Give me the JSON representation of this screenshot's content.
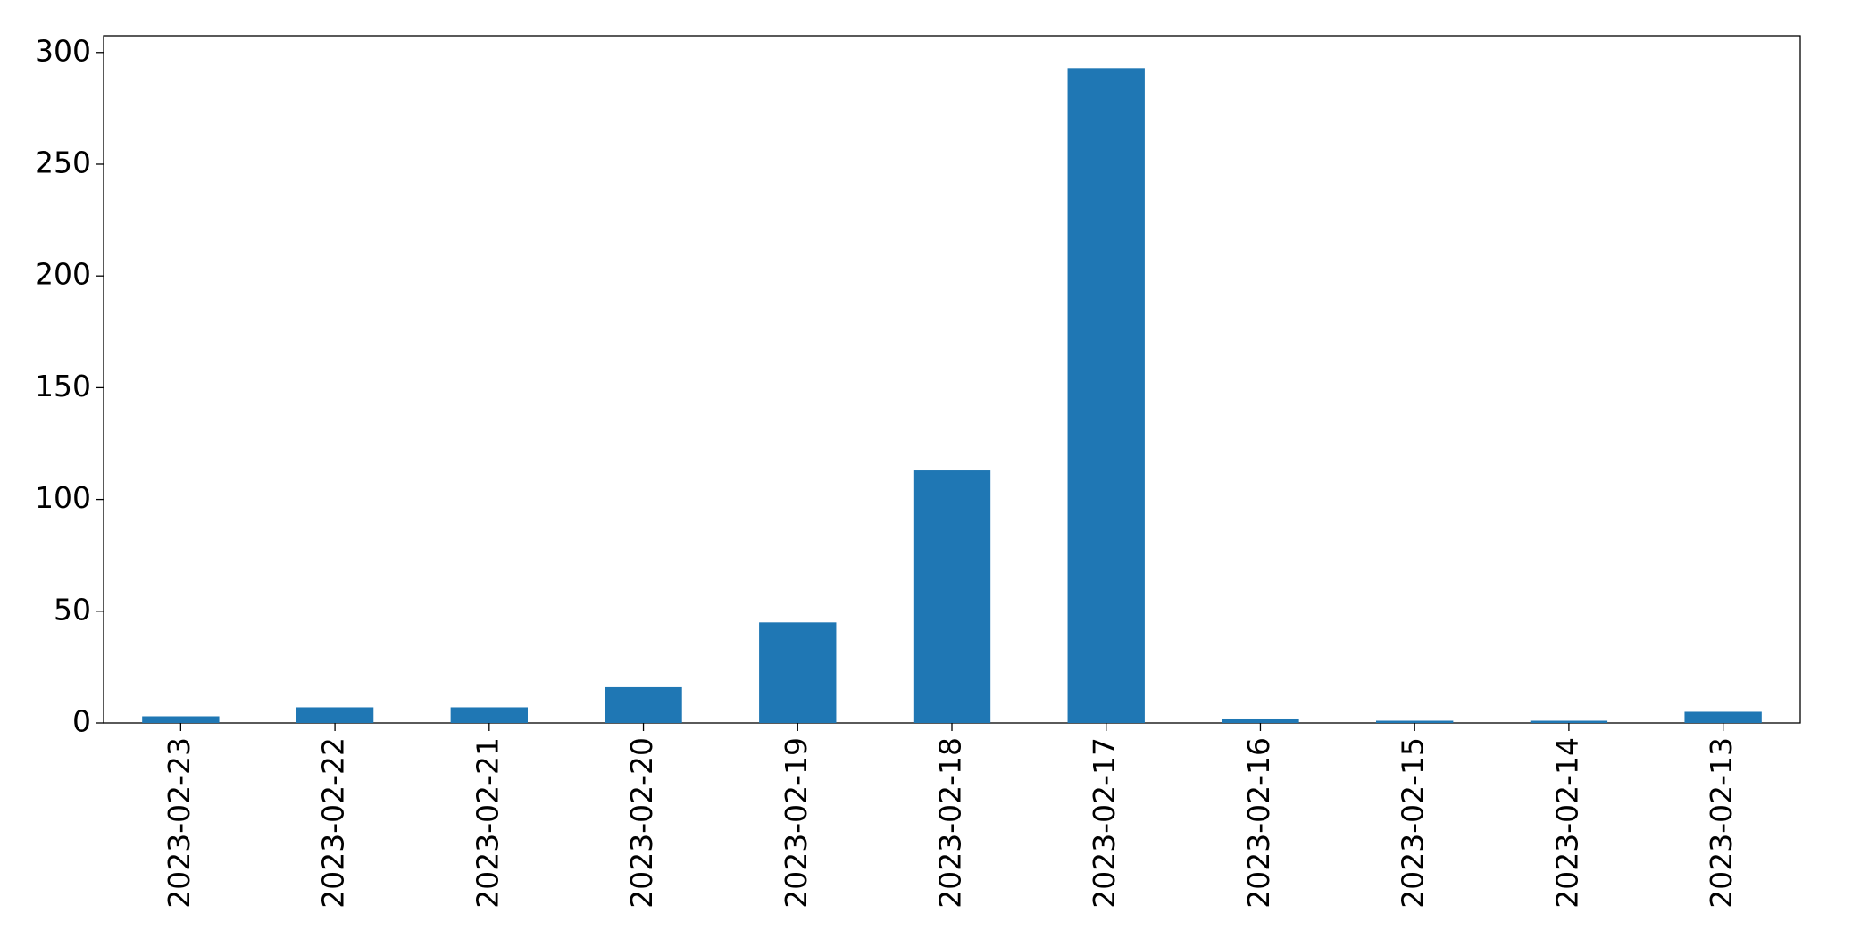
{
  "chart_data": {
    "type": "bar",
    "categories": [
      "2023-02-23",
      "2023-02-22",
      "2023-02-21",
      "2023-02-20",
      "2023-02-19",
      "2023-02-18",
      "2023-02-17",
      "2023-02-16",
      "2023-02-15",
      "2023-02-14",
      "2023-02-13"
    ],
    "values": [
      3,
      7,
      7,
      16,
      45,
      113,
      293,
      2,
      1,
      1,
      5
    ],
    "color": "#1f77b4",
    "ylim": [
      0,
      307.5
    ],
    "yticks": [
      0,
      50,
      100,
      150,
      200,
      250,
      300
    ],
    "grid": false
  }
}
